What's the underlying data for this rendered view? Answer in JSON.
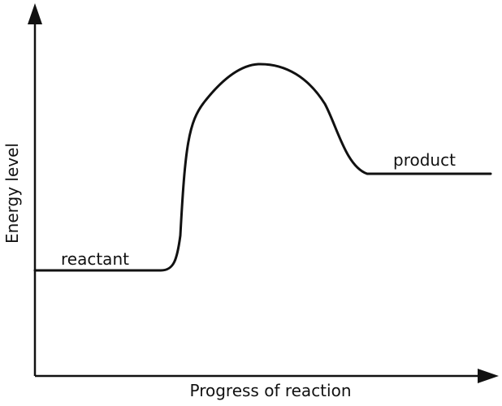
{
  "axes": {
    "y_label": "Energy level",
    "x_label": "Progress of reaction"
  },
  "labels": {
    "reactant": "reactant",
    "product": "product"
  },
  "colors": {
    "line": "#111111",
    "background": "#ffffff"
  }
}
